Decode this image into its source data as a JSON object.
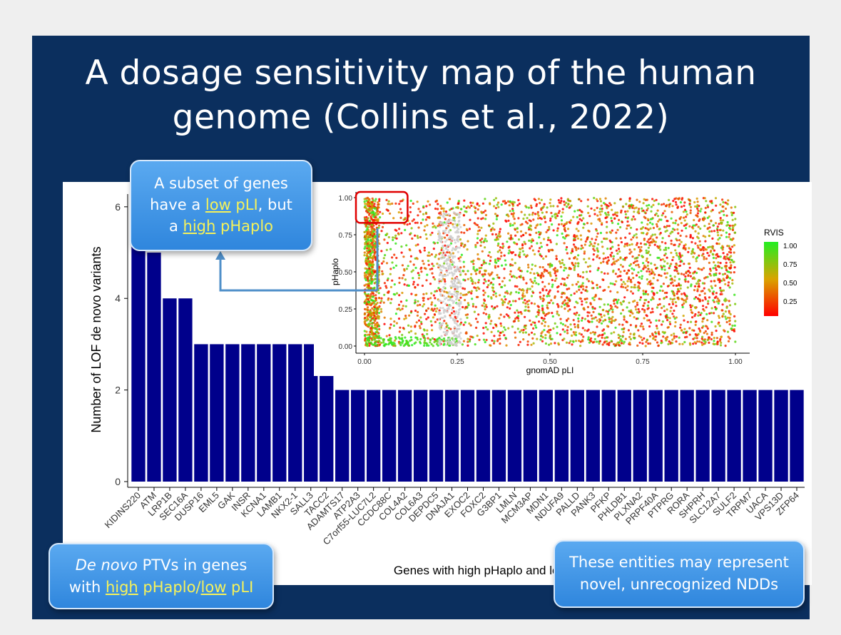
{
  "slide": {
    "title_line1": "A dosage sensitivity map of the human",
    "title_line2": "genome (Collins et al., 2022)",
    "background": "#0b2f5e"
  },
  "callouts": {
    "top": {
      "line1": "A subset of genes",
      "line2_pre": "have a ",
      "line2_hl": "low",
      "line2_mid": " pLI",
      "line2_post": ", but",
      "line3_pre": "a ",
      "line3_hl": "high",
      "line3_post": " pHaplo"
    },
    "bottom_left": {
      "line1_em": "De novo",
      "line1_post": " PTVs in genes",
      "line2_pre": "with ",
      "line2_hl1": "high",
      "line2_mid": " pHaplo/",
      "line2_hl2": "low",
      "line2_post": " pLI"
    },
    "bottom_right": {
      "line1": "These entities may represent",
      "line2": "novel, unrecognized NDDs"
    }
  },
  "chart_data": [
    {
      "type": "bar",
      "xlabel": "Genes with high pHaplo and low pLI",
      "ylabel": "Number of LOF de novo variants",
      "ylim": [
        0,
        6.2
      ],
      "yticks": [
        0,
        2,
        4,
        6
      ],
      "bar_color": "#00008b",
      "categories": [
        "KIDINS220",
        "ATM",
        "LRP1B",
        "SEC16A",
        "DUSP16",
        "EML5",
        "GAK",
        "INSR",
        "KCNA1",
        "LAMB1",
        "NKX2-1",
        "SALL3",
        "TACC2",
        "ADAMTS17",
        "ATP2A3",
        "C7orf55-LUC7L2",
        "CCDC88C",
        "COL4A2",
        "COL6A3",
        "DEPDC5",
        "DNAJA1",
        "EXOC2",
        "FOXC2",
        "G3BP1",
        "LMLN",
        "MCM3AP",
        "MDN1",
        "NDUFA9",
        "PALLD",
        "PANK3",
        "PFKP",
        "PHLDB1",
        "PLXNA2",
        "PRPF40A",
        "PTPRG",
        "RORA",
        "SHPRH",
        "SLC12A7",
        "SULF2",
        "TRPM7",
        "UACA",
        "VPS13D",
        "ZFP64"
      ],
      "values": [
        6,
        5,
        4,
        4,
        3,
        3,
        3,
        3,
        3,
        3,
        3,
        3,
        3,
        2,
        2,
        2,
        2,
        2,
        2,
        2,
        2,
        2,
        2,
        2,
        2,
        2,
        2,
        2,
        2,
        2,
        2,
        2,
        2,
        2,
        2,
        2,
        2,
        2,
        2,
        2,
        2,
        2,
        2
      ]
    },
    {
      "type": "scatter",
      "xlabel": "gnomAD pLI",
      "ylabel": "pHaplo",
      "xlim": [
        0,
        1
      ],
      "ylim": [
        0,
        1
      ],
      "xticks": [
        "0.00",
        "0.25",
        "0.50",
        "0.75",
        "1.00"
      ],
      "yticks": [
        "0.00",
        "0.25",
        "0.50",
        "0.75",
        "1.00"
      ],
      "color_legend": {
        "title": "RVIS",
        "ticks": [
          "1.00",
          "0.75",
          "0.50",
          "0.25"
        ],
        "low_color": "#ff0000",
        "mid_color": "#d9a400",
        "high_color": "#22ee22"
      },
      "highlight_box": {
        "x": [
          0,
          0.12
        ],
        "y": [
          0.83,
          1.0
        ],
        "color": "#e00000"
      },
      "density_description": "dense orange/red points across range; dense column near pLI 0; grey points near pLI 0.25"
    }
  ]
}
